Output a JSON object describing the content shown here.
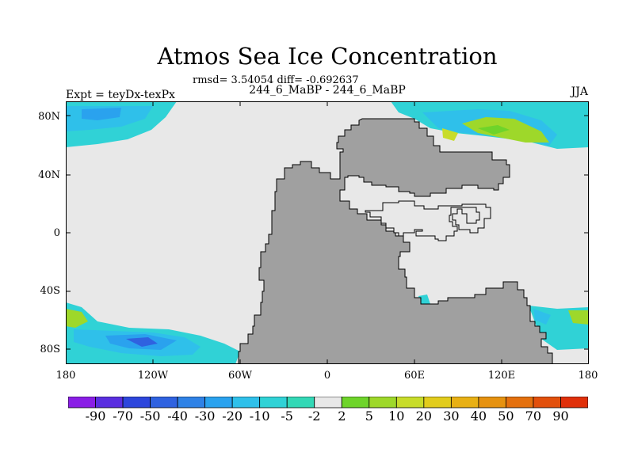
{
  "title": "Atmos Sea Ice Concentration",
  "stats": "rmsd= 3.54054 diff= -0.692637",
  "expt_label": "Expt = teyDx-texPx",
  "runs_label": "244_6_MaBP - 244_6_MaBP",
  "season": "JJA",
  "y_ticks": [
    "80N",
    "40N",
    "0",
    "40S",
    "80S"
  ],
  "x_ticks": [
    "180",
    "120W",
    "60W",
    "0",
    "60E",
    "120E",
    "180"
  ],
  "colorbar": {
    "labels": [
      "-90",
      "-70",
      "-50",
      "-40",
      "-30",
      "-20",
      "-10",
      "-5",
      "-2",
      "2",
      "5",
      "10",
      "20",
      "30",
      "40",
      "50",
      "70",
      "90"
    ],
    "colors": [
      "#8a1ee6",
      "#5a2ee0",
      "#2d46dc",
      "#2f62e0",
      "#2f82e6",
      "#2aa2ee",
      "#2fc0ea",
      "#30d2d6",
      "#33d8b6",
      "#e8e8e8",
      "#6ed42a",
      "#9ed82a",
      "#c8dc2a",
      "#e2cc1c",
      "#e8b014",
      "#e69210",
      "#e4700e",
      "#e2500c",
      "#e0300a"
    ]
  },
  "colors": {
    "land": "#a0a0a0",
    "ocean_zero": "#e8e8e8"
  }
}
